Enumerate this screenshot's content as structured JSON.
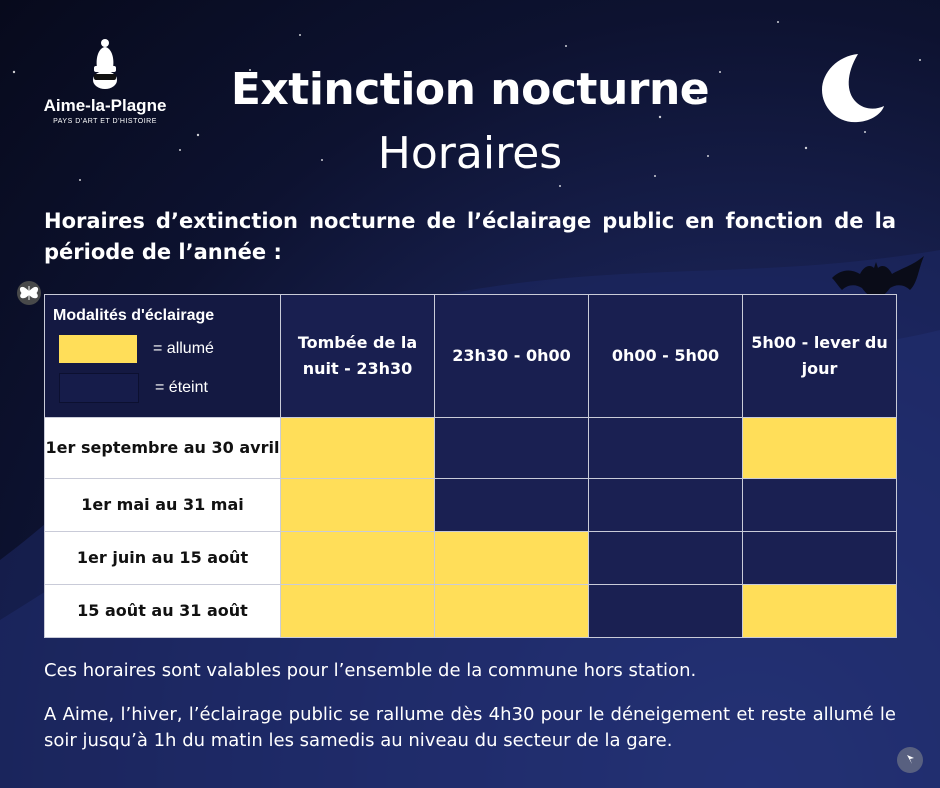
{
  "logo": {
    "name": "Aime-la-Plagne",
    "tagline": "PAYS D'ART ET D'HISTOIRE"
  },
  "title": "Extinction nocturne",
  "subtitle": "Horaires",
  "intro": "Horaires d’extinction nocturne de l’éclairage public en fonction de la période de l’année :",
  "legend": {
    "title": "Modalités d'éclairage",
    "on_label": "= allumé",
    "off_label": "= éteint",
    "on_color": "#ffde59",
    "off_color": "#161c4a"
  },
  "columns": [
    "Tombée de la nuit - 23h30",
    "23h30 - 0h00",
    "0h00 - 5h00",
    "5h00 - lever du jour"
  ],
  "rows": [
    {
      "label": "1er septembre au 30 avril",
      "states": [
        "on",
        "off",
        "off",
        "on"
      ]
    },
    {
      "label": "1er mai au 31 mai",
      "states": [
        "on",
        "off",
        "off",
        "off"
      ]
    },
    {
      "label": "1er juin au 15 août",
      "states": [
        "on",
        "on",
        "off",
        "off"
      ]
    },
    {
      "label": "15 août au 31 août",
      "states": [
        "on",
        "on",
        "off",
        "on"
      ]
    }
  ],
  "note1": "Ces horaires sont valables pour l’ensemble de la commune hors station.",
  "note2": "A Aime, l’hiver, l’éclairage public se rallume dès 4h30 pour le déneigement et reste allumé le soir jusqu’à 1h du matin les samedis au niveau du secteur de la gare."
}
